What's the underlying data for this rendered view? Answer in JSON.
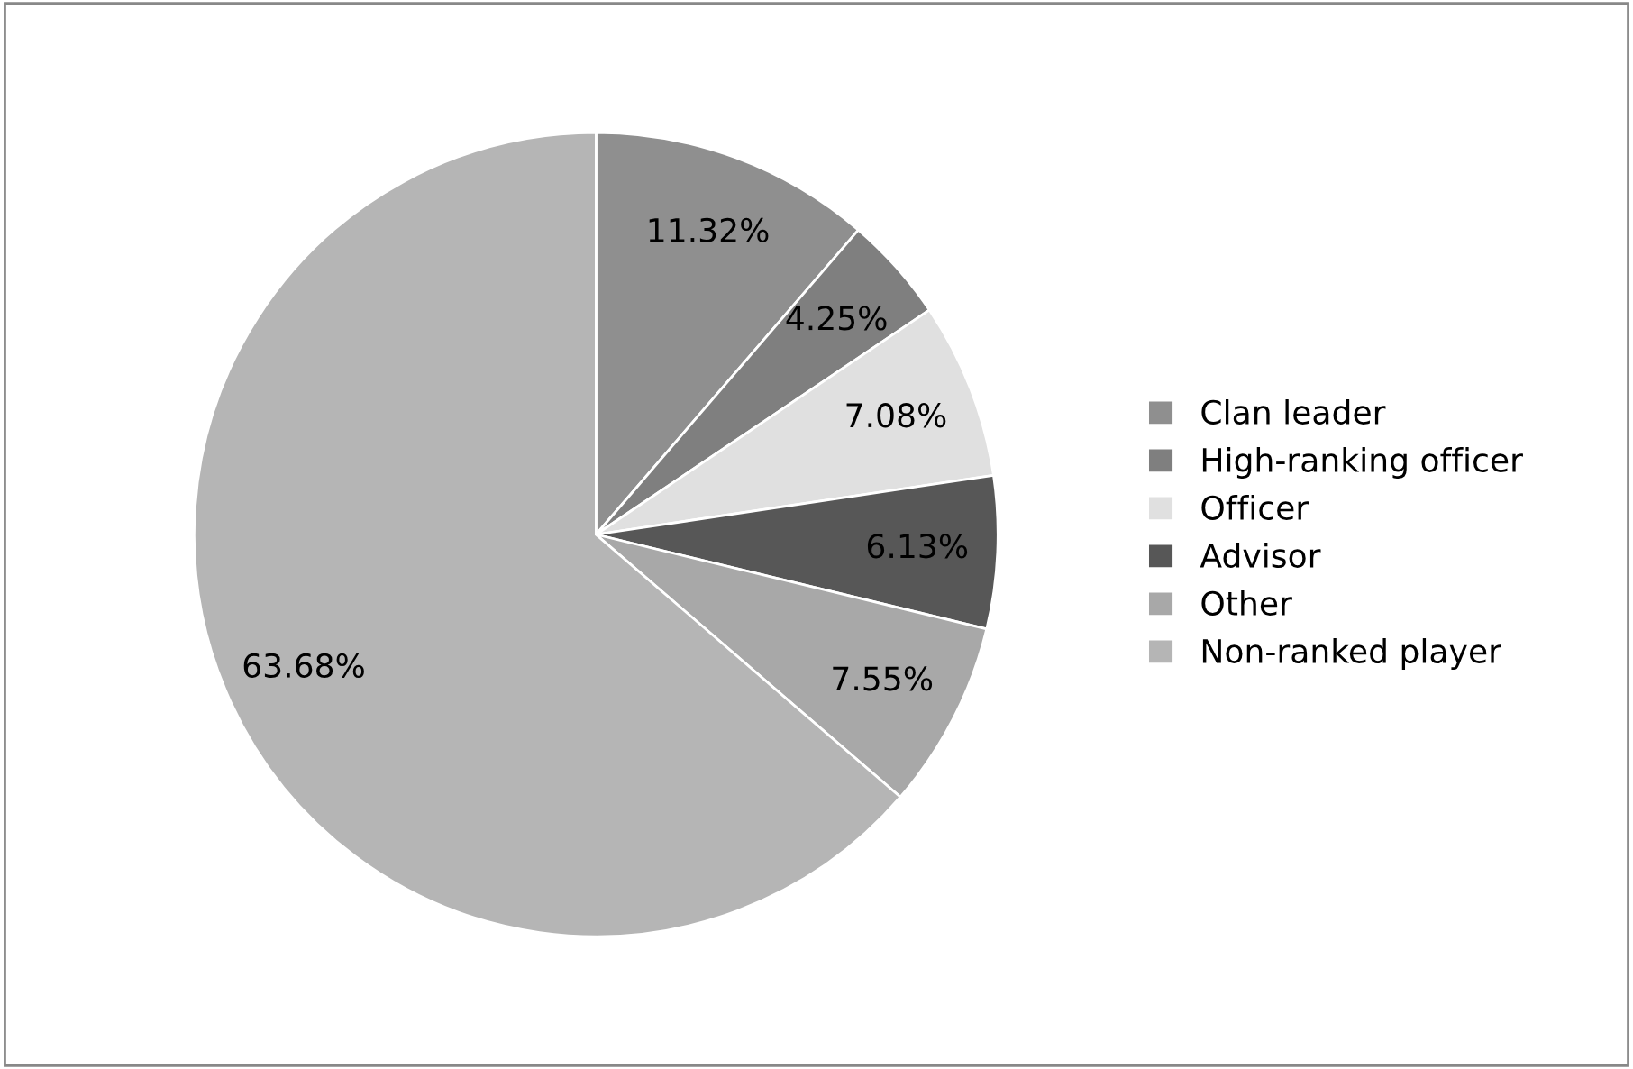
{
  "chart_data": {
    "type": "pie",
    "categories": [
      "Clan leader",
      "High-ranking officer",
      "Officer",
      "Advisor",
      "Other",
      "Non-ranked player"
    ],
    "values": [
      11.32,
      4.25,
      7.08,
      6.13,
      7.55,
      63.68
    ],
    "colors": [
      "#8f8f8f",
      "#7f7f7f",
      "#e0e0e0",
      "#575757",
      "#a8a8a8",
      "#b5b5b5"
    ],
    "value_labels": [
      "11.32%",
      "4.25%",
      "7.08%",
      "6.13%",
      "7.55%",
      "63.68%"
    ],
    "legend": "right"
  }
}
